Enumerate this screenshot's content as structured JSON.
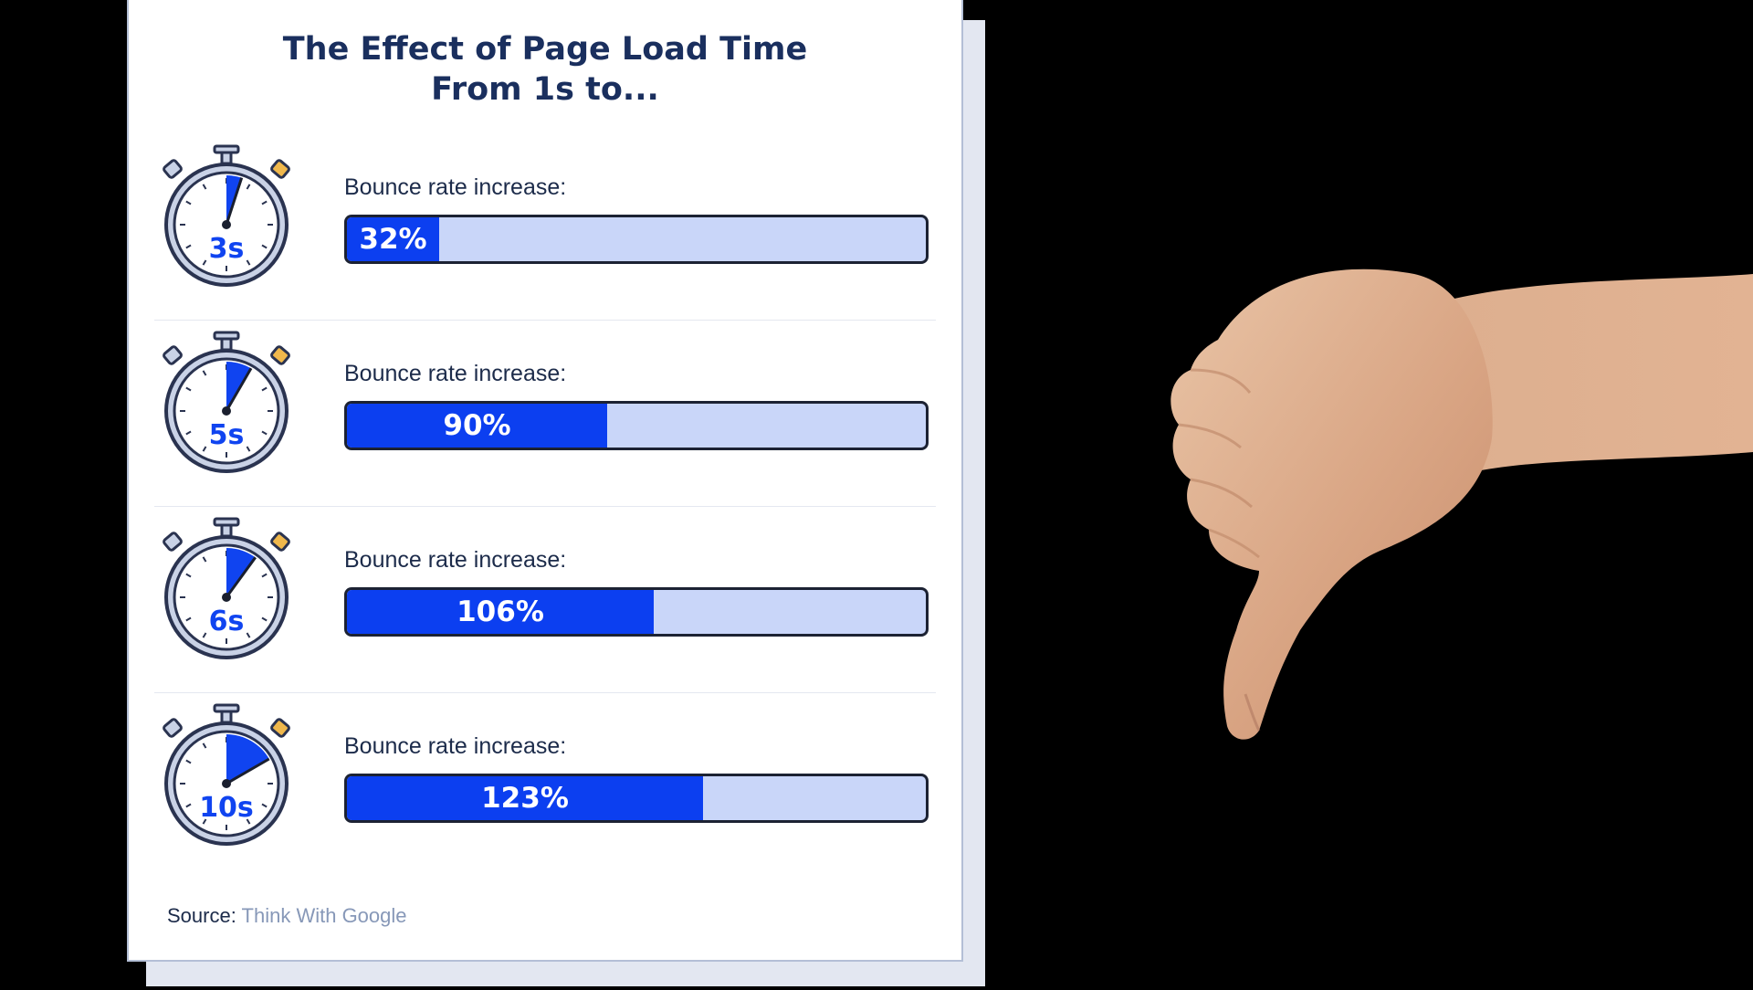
{
  "chart_data": {
    "type": "bar",
    "title": [
      "The Effect of Page Load Time",
      "From 1s to..."
    ],
    "bar_label": "Bounce rate increase:",
    "categories": [
      "3s",
      "5s",
      "6s",
      "10s"
    ],
    "values": [
      32,
      90,
      106,
      123
    ],
    "value_labels": [
      "32%",
      "90%",
      "106%",
      "123%"
    ],
    "xlim": [
      0,
      200
    ],
    "source_label": "Source:",
    "source_name": "Think With Google"
  },
  "colors": {
    "fill": "#0c3ff0",
    "track": "#c9d6f9",
    "title": "#1a2f5e",
    "stopwatch_wedge": "#1044f0",
    "stopwatch_button": "#f0b84c"
  },
  "icons": {
    "stopwatch": "stopwatch-icon",
    "photo": "thumbs-down-hand-photo"
  }
}
